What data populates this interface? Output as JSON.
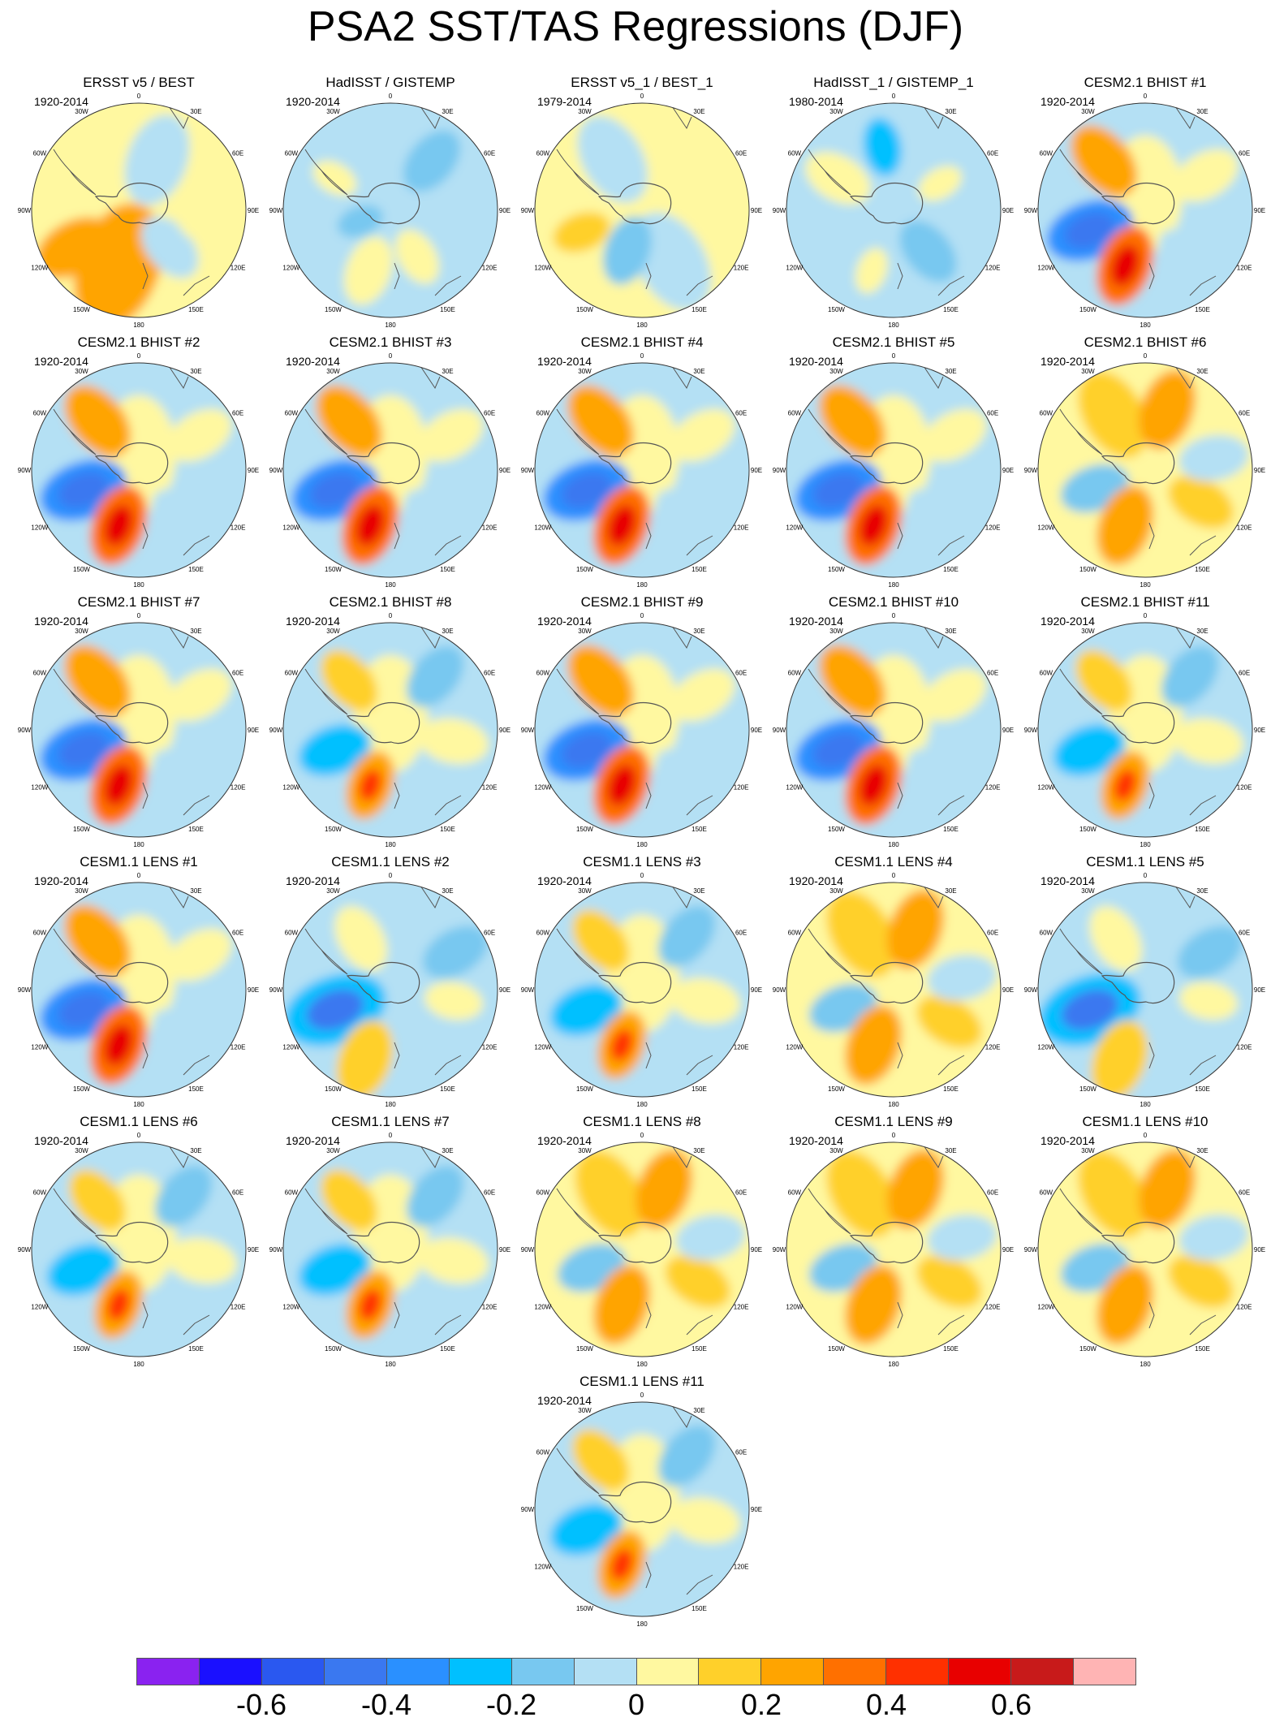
{
  "title": "PSA2 SST/TAS Regressions (DJF)",
  "longitude_labels": {
    "0": "0",
    "30W": "30W",
    "30E": "30E",
    "60W": "60W",
    "60E": "60E",
    "90W": "90W",
    "90E": "90E",
    "120W": "120W",
    "120E": "120E",
    "150W": "150W",
    "150E": "150E",
    "180": "180"
  },
  "colorbar": {
    "colors": [
      "#8a22f0",
      "#1a10ff",
      "#2a58f0",
      "#3a78f0",
      "#2a90ff",
      "#00c0ff",
      "#78c8f0",
      "#b4e0f4",
      "#fff8a0",
      "#ffd02a",
      "#ffa400",
      "#ff7000",
      "#ff3000",
      "#e80000",
      "#c81a1a",
      "#ffb4b4"
    ],
    "tick_labels": [
      "-0.6",
      "-0.4",
      "-0.2",
      "0",
      "0.2",
      "0.4",
      "0.6"
    ],
    "tick_boundary_index": [
      2,
      4,
      6,
      8,
      10,
      12,
      14
    ]
  },
  "panels": [
    {
      "title": "ERSST v5 / BEST",
      "period": "1920-2014",
      "pattern": "obs1"
    },
    {
      "title": "HadISST / GISTEMP",
      "period": "1920-2014",
      "pattern": "obs2"
    },
    {
      "title": "ERSST v5_1 / BEST_1",
      "period": "1979-2014",
      "pattern": "obs3"
    },
    {
      "title": "HadISST_1 / GISTEMP_1",
      "period": "1980-2014",
      "pattern": "obs4"
    },
    {
      "title": "CESM2.1 BHIST #1",
      "period": "1920-2014",
      "pattern": "strong"
    },
    {
      "title": "CESM2.1 BHIST #2",
      "period": "1920-2014",
      "pattern": "strong"
    },
    {
      "title": "CESM2.1 BHIST #3",
      "period": "1920-2014",
      "pattern": "strong"
    },
    {
      "title": "CESM2.1 BHIST #4",
      "period": "1920-2014",
      "pattern": "strong"
    },
    {
      "title": "CESM2.1 BHIST #5",
      "period": "1920-2014",
      "pattern": "strong"
    },
    {
      "title": "CESM2.1 BHIST #6",
      "period": "1920-2014",
      "pattern": "warm"
    },
    {
      "title": "CESM2.1 BHIST #7",
      "period": "1920-2014",
      "pattern": "strong"
    },
    {
      "title": "CESM2.1 BHIST #8",
      "period": "1920-2014",
      "pattern": "medium"
    },
    {
      "title": "CESM2.1 BHIST #9",
      "period": "1920-2014",
      "pattern": "strong"
    },
    {
      "title": "CESM2.1 BHIST #10",
      "period": "1920-2014",
      "pattern": "strong"
    },
    {
      "title": "CESM2.1 BHIST #11",
      "period": "1920-2014",
      "pattern": "medium"
    },
    {
      "title": "CESM1.1 LENS #1",
      "period": "1920-2014",
      "pattern": "strong"
    },
    {
      "title": "CESM1.1 LENS #2",
      "period": "1920-2014",
      "pattern": "cool"
    },
    {
      "title": "CESM1.1 LENS #3",
      "period": "1920-2014",
      "pattern": "medium"
    },
    {
      "title": "CESM1.1 LENS #4",
      "period": "1920-2014",
      "pattern": "warm"
    },
    {
      "title": "CESM1.1 LENS #5",
      "period": "1920-2014",
      "pattern": "cool"
    },
    {
      "title": "CESM1.1 LENS #6",
      "period": "1920-2014",
      "pattern": "medium"
    },
    {
      "title": "CESM1.1 LENS #7",
      "period": "1920-2014",
      "pattern": "medium"
    },
    {
      "title": "CESM1.1 LENS #8",
      "period": "1920-2014",
      "pattern": "warm"
    },
    {
      "title": "CESM1.1 LENS #9",
      "period": "1920-2014",
      "pattern": "warm"
    },
    {
      "title": "CESM1.1 LENS #10",
      "period": "1920-2014",
      "pattern": "warm"
    },
    {
      "title": "CESM1.1 LENS #11",
      "period": "1920-2014",
      "pattern": "medium"
    }
  ]
}
